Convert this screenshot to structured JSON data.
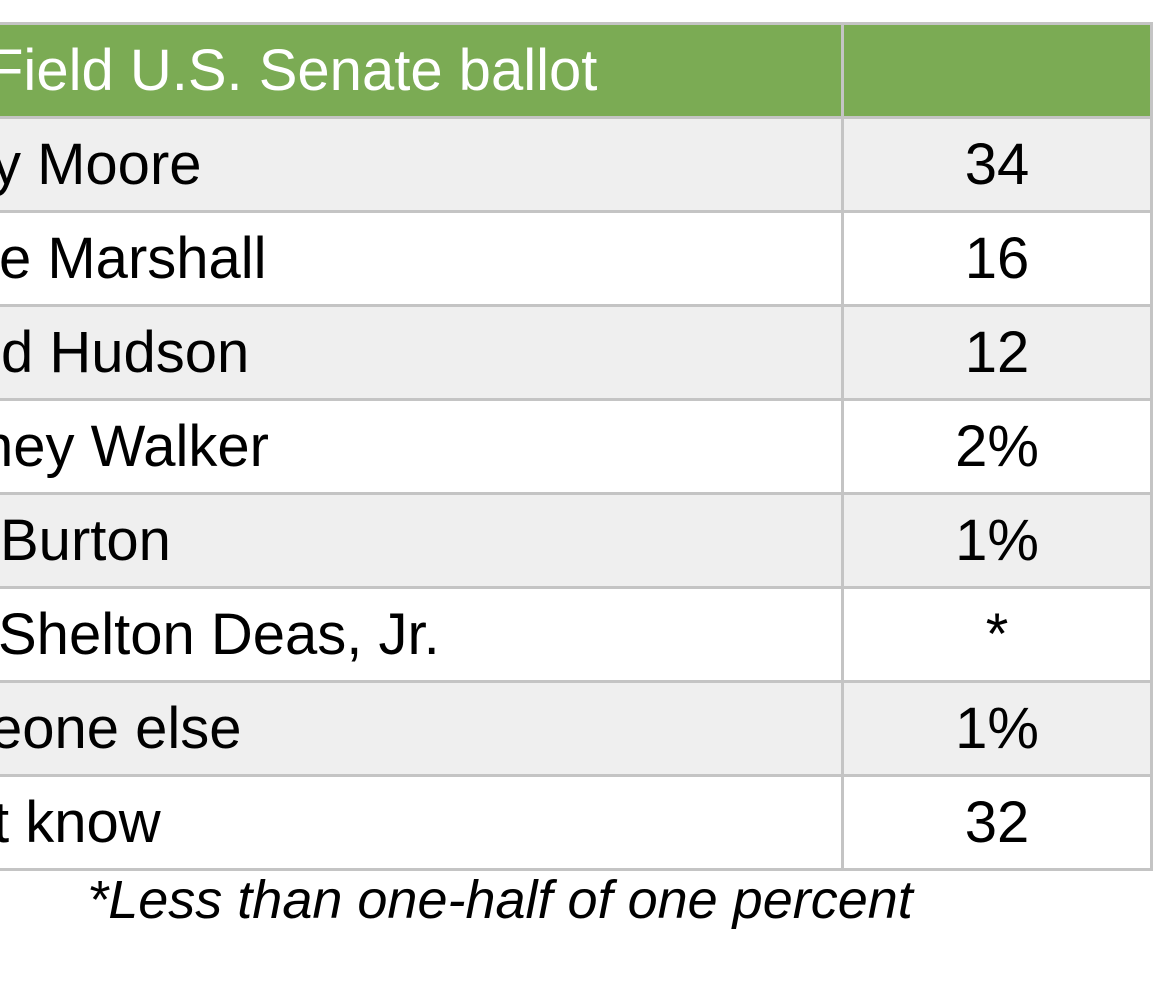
{
  "table": {
    "header": {
      "title": "Field U.S. Senate ballot",
      "value_header": ""
    },
    "rows": [
      {
        "name": "y Moore",
        "value": "34"
      },
      {
        "name": "e Marshall",
        "value": "16"
      },
      {
        "name": "d Hudson",
        "value": "12"
      },
      {
        "name": "ney Walker",
        "value": "2%"
      },
      {
        "name": " Burton",
        "value": "1%"
      },
      {
        "name": " Shelton Deas, Jr.",
        "value": "*"
      },
      {
        "name": "eone else",
        "value": "1%"
      },
      {
        "name": "t know",
        "value": "32"
      }
    ],
    "colors": {
      "header_bg": "#7bab54",
      "header_text": "#ffffff",
      "stripe_bg": "#efefef",
      "border": "#c4c4c4"
    }
  },
  "footnote": "*Less than one-half of one percent"
}
